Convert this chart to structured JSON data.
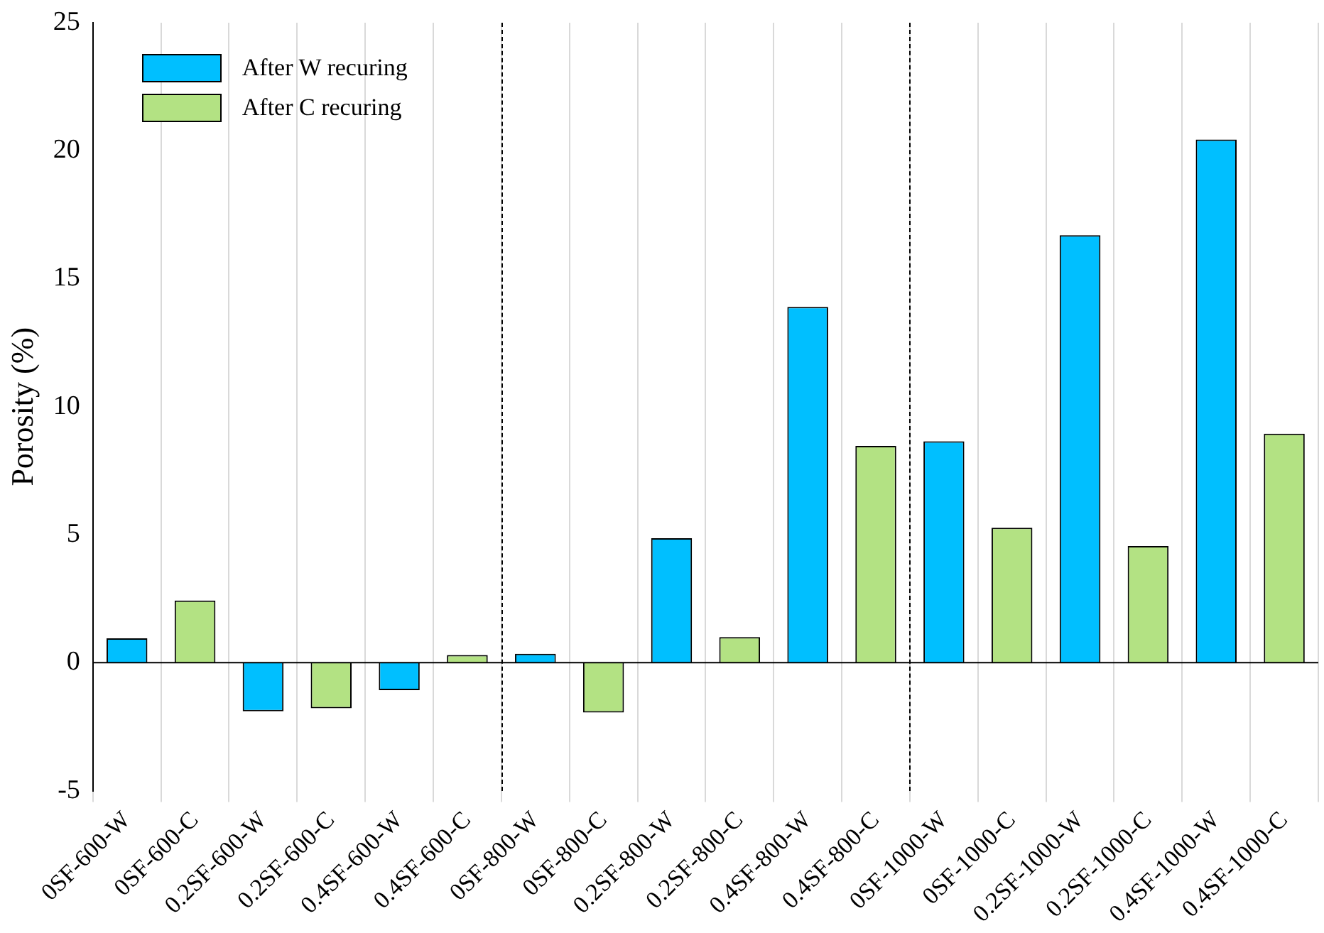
{
  "chart_data": {
    "type": "bar",
    "ylabel": "Porosity (%)",
    "categories": [
      "0SF-600-W",
      "0SF-600-C",
      "0.2SF-600-W",
      "0.2SF-600-C",
      "0.4SF-600-W",
      "0.4SF-600-C",
      "0SF-800-W",
      "0SF-800-C",
      "0.2SF-800-W",
      "0.2SF-800-C",
      "0.4SF-800-W",
      "0.4SF-800-C",
      "0SF-1000-W",
      "0SF-1000-C",
      "0.2SF-1000-W",
      "0.2SF-1000-C",
      "0.4SF-1000-W",
      "0.4SF-1000-C"
    ],
    "series": [
      {
        "name": "After W recuring",
        "color": "#00bfff",
        "values": [
          0.95,
          null,
          -1.9,
          null,
          -1.07,
          null,
          0.35,
          null,
          4.86,
          null,
          13.9,
          null,
          8.65,
          null,
          16.7,
          null,
          20.44,
          null
        ]
      },
      {
        "name": "After C recuring",
        "color": "#b3e283",
        "values": [
          null,
          2.43,
          null,
          -1.78,
          null,
          0.3,
          null,
          -1.95,
          null,
          1.0,
          null,
          8.47,
          null,
          5.27,
          null,
          4.56,
          null,
          8.95
        ]
      }
    ],
    "ylim": [
      -5,
      25
    ],
    "yticks": [
      -5,
      0,
      5,
      10,
      15,
      20,
      25
    ],
    "grid": "x",
    "legend": "top left"
  }
}
